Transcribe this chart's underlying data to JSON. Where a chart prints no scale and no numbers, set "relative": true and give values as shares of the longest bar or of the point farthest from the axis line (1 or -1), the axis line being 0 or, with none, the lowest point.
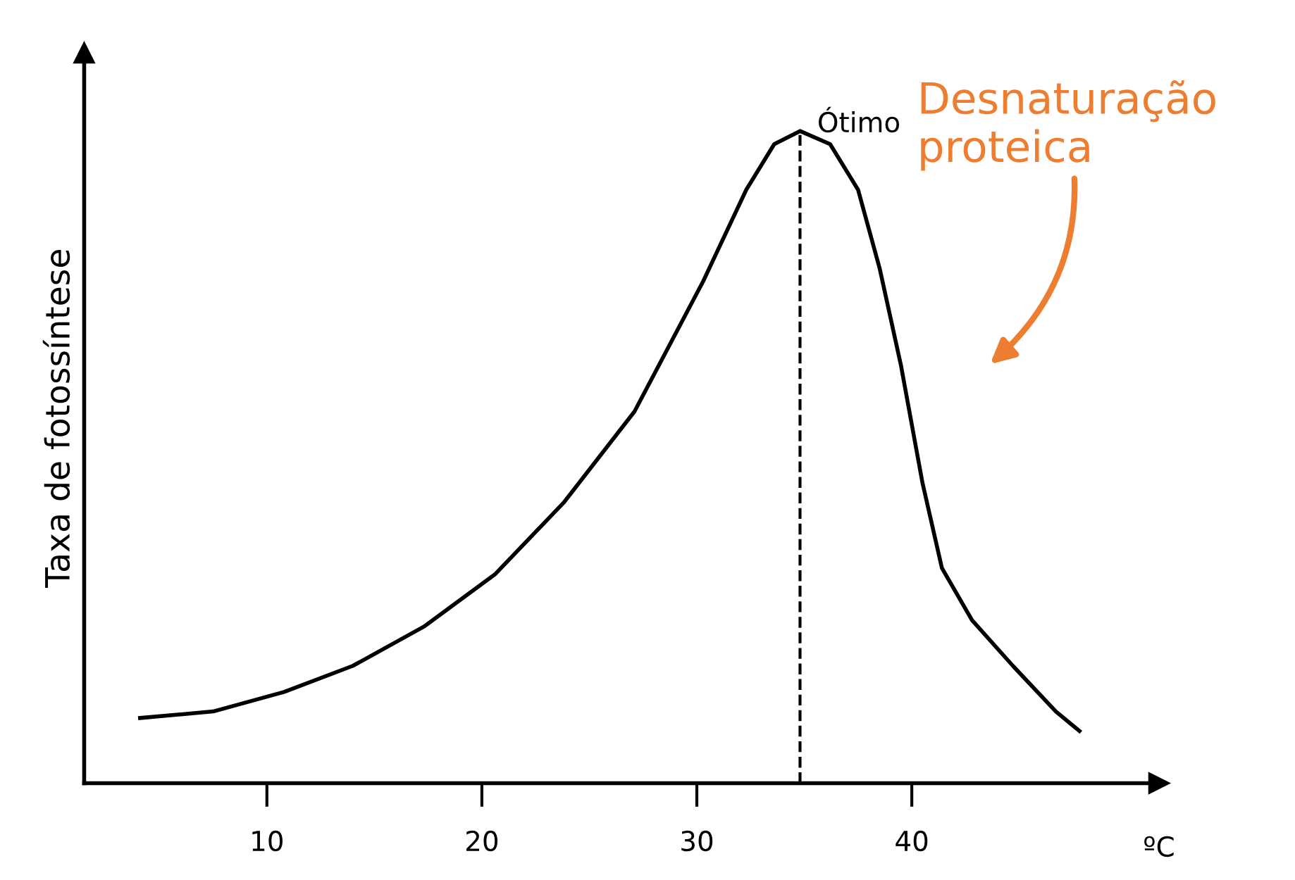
{
  "chart_data": {
    "type": "line",
    "relative": true,
    "xlabel": "ºC",
    "ylabel": "Taxa de fotossíntese",
    "color": "#000000",
    "x": [
      4.1,
      7.5,
      10.8,
      14.0,
      17.3,
      20.6,
      23.8,
      27.1,
      30.3,
      32.3,
      33.6,
      34.8,
      36.2,
      37.5,
      38.5,
      39.5,
      40.5,
      41.4,
      42.8,
      44.7,
      46.7,
      47.8
    ],
    "values": [
      0.1,
      0.11,
      0.14,
      0.18,
      0.24,
      0.32,
      0.43,
      0.57,
      0.77,
      0.91,
      0.98,
      1.0,
      0.98,
      0.91,
      0.79,
      0.64,
      0.46,
      0.33,
      0.25,
      0.18,
      0.11,
      0.08
    ],
    "xlim": [
      1.5,
      51.5
    ],
    "xticks": [
      10,
      20,
      30,
      40
    ],
    "grid": false,
    "ref_lines": [
      {
        "axis": "x",
        "value": 34.8,
        "label": "Ótimo",
        "line_style": "dashed",
        "color": "#000000"
      }
    ],
    "annotations": [
      "Desnaturação proteica"
    ]
  }
}
